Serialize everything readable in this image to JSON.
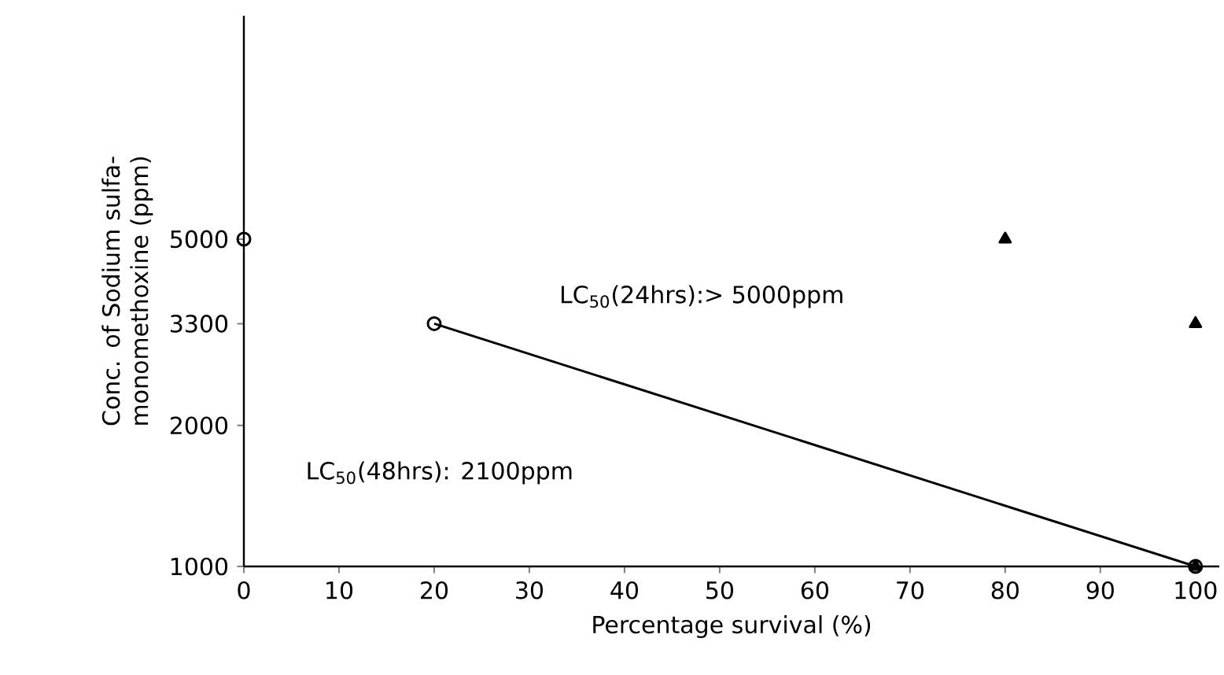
{
  "chart_data": {
    "type": "scatter",
    "xlabel": "Percentage survival (%)",
    "ylabel": "Conc. of Sodium sulfa- monomethoxine (ppm)",
    "series": [
      {
        "type": "line",
        "color": "#000000",
        "marker": "circle",
        "x": [
          20,
          100
        ],
        "values": [
          3300,
          1000
        ]
      },
      {
        "color": "#000000",
        "marker": "circle",
        "x": [
          0
        ],
        "values": [
          5000
        ]
      },
      {
        "color": "#000000",
        "marker": "triangle",
        "x": [
          80,
          100,
          100
        ],
        "values": [
          5000,
          3300,
          1000
        ]
      }
    ],
    "log": "y",
    "xlim": [
      0,
      102.5
    ],
    "xticks": [
      0,
      10,
      20,
      30,
      40,
      50,
      60,
      70,
      80,
      90,
      100
    ],
    "ylim": [
      1000,
      15000
    ],
    "yticks": [
      1000,
      2000,
      3300,
      5000
    ],
    "grid": false,
    "annotations": [
      "LC$_{50}$(24hrs):> 5000ppm",
      "LC$_{50}$(48hrs): 2100ppm"
    ]
  }
}
